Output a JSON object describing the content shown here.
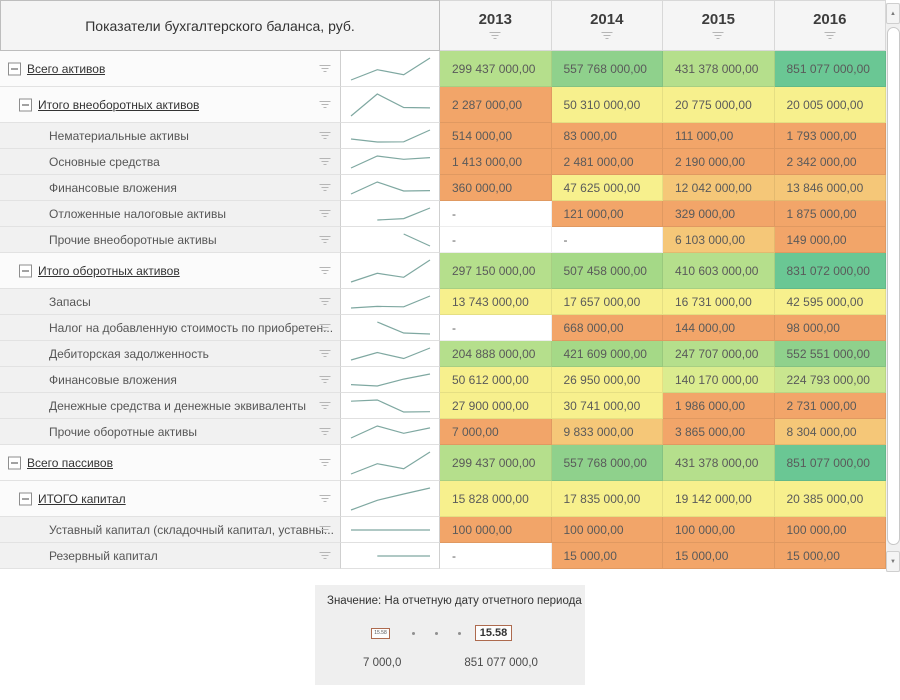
{
  "header": {
    "title": "Показатели бухгалтерского баланса, руб.",
    "years": [
      "2013",
      "2014",
      "2015",
      "2016"
    ]
  },
  "palette": {
    "orange": "#F2A569",
    "amber": "#F5C778",
    "yellow": "#F7F08D",
    "yellowgreen": "#DBEC8F",
    "ygreen2": "#C9E68F",
    "lightgreen": "#B5DF8C",
    "green": "#A5D987",
    "medgreen": "#8FD18C",
    "tealgreen": "#6AC794",
    "white": "#FFFFFF"
  },
  "sparkline_color": "#7FA8A1",
  "rows": [
    {
      "label": "Всего активов",
      "level": 0,
      "group": true,
      "values": [
        "299 437 000,00",
        "557 768 000,00",
        "431 378 000,00",
        "851 077 000,00"
      ],
      "colors": [
        "lightgreen",
        "medgreen",
        "lightgreen",
        "tealgreen"
      ]
    },
    {
      "label": "Итого внеоборотных активов",
      "level": 1,
      "group": true,
      "values": [
        "2 287 000,00",
        "50 310 000,00",
        "20 775 000,00",
        "20 005 000,00"
      ],
      "colors": [
        "orange",
        "yellow",
        "yellow",
        "yellow"
      ]
    },
    {
      "label": "Нематериальные активы",
      "level": 2,
      "group": false,
      "values": [
        "514 000,00",
        "83 000,00",
        "111 000,00",
        "1 793 000,00"
      ],
      "colors": [
        "orange",
        "orange",
        "orange",
        "orange"
      ]
    },
    {
      "label": "Основные средства",
      "level": 2,
      "group": false,
      "values": [
        "1 413 000,00",
        "2 481 000,00",
        "2 190 000,00",
        "2 342 000,00"
      ],
      "colors": [
        "orange",
        "orange",
        "orange",
        "orange"
      ]
    },
    {
      "label": "Финансовые вложения",
      "level": 2,
      "group": false,
      "values": [
        "360 000,00",
        "47 625 000,00",
        "12 042 000,00",
        "13 846 000,00"
      ],
      "colors": [
        "orange",
        "yellow",
        "amber",
        "amber"
      ]
    },
    {
      "label": "Отложенные налоговые активы",
      "level": 2,
      "group": false,
      "values": [
        "-",
        "121 000,00",
        "329 000,00",
        "1 875 000,00"
      ],
      "colors": [
        "white",
        "orange",
        "orange",
        "orange"
      ]
    },
    {
      "label": "Прочие внеоборотные активы",
      "level": 2,
      "group": false,
      "values": [
        "-",
        "-",
        "6 103 000,00",
        "149 000,00"
      ],
      "colors": [
        "white",
        "white",
        "amber",
        "orange"
      ]
    },
    {
      "label": "Итого оборотных активов",
      "level": 1,
      "group": true,
      "values": [
        "297 150 000,00",
        "507 458 000,00",
        "410 603 000,00",
        "831 072 000,00"
      ],
      "colors": [
        "lightgreen",
        "green",
        "lightgreen",
        "tealgreen"
      ]
    },
    {
      "label": "Запасы",
      "level": 2,
      "group": false,
      "values": [
        "13 743 000,00",
        "17 657 000,00",
        "16 731 000,00",
        "42 595 000,00"
      ],
      "colors": [
        "yellow",
        "yellow",
        "yellow",
        "yellow"
      ]
    },
    {
      "label": "Налог на добавленную стоимость по приобретен...",
      "level": 2,
      "group": false,
      "values": [
        "-",
        "668 000,00",
        "144 000,00",
        "98 000,00"
      ],
      "colors": [
        "white",
        "orange",
        "orange",
        "orange"
      ]
    },
    {
      "label": "Дебиторская задолженность",
      "level": 2,
      "group": false,
      "values": [
        "204 888 000,00",
        "421 609 000,00",
        "247 707 000,00",
        "552 551 000,00"
      ],
      "colors": [
        "lightgreen",
        "green",
        "lightgreen",
        "medgreen"
      ]
    },
    {
      "label": "Финансовые вложения",
      "level": 2,
      "group": false,
      "values": [
        "50 612 000,00",
        "26 950 000,00",
        "140 170 000,00",
        "224 793 000,00"
      ],
      "colors": [
        "yellow",
        "yellow",
        "yellowgreen",
        "ygreen2"
      ]
    },
    {
      "label": "Денежные средства и денежные эквиваленты",
      "level": 2,
      "group": false,
      "values": [
        "27 900 000,00",
        "30 741 000,00",
        "1 986 000,00",
        "2 731 000,00"
      ],
      "colors": [
        "yellow",
        "yellow",
        "orange",
        "orange"
      ]
    },
    {
      "label": "Прочие оборотные активы",
      "level": 2,
      "group": false,
      "values": [
        "7 000,00",
        "9 833 000,00",
        "3 865 000,00",
        "8 304 000,00"
      ],
      "colors": [
        "orange",
        "amber",
        "orange",
        "amber"
      ]
    },
    {
      "label": "Всего пассивов",
      "level": 0,
      "group": true,
      "values": [
        "299 437 000,00",
        "557 768 000,00",
        "431 378 000,00",
        "851 077 000,00"
      ],
      "colors": [
        "lightgreen",
        "medgreen",
        "lightgreen",
        "tealgreen"
      ]
    },
    {
      "label": "ИТОГО капитал",
      "level": 1,
      "group": true,
      "values": [
        "15 828 000,00",
        "17 835 000,00",
        "19 142 000,00",
        "20 385 000,00"
      ],
      "colors": [
        "yellow",
        "yellow",
        "yellow",
        "yellow"
      ]
    },
    {
      "label": "Уставный капитал (складочный капитал, уставны...",
      "level": 2,
      "group": false,
      "values": [
        "100 000,00",
        "100 000,00",
        "100 000,00",
        "100 000,00"
      ],
      "colors": [
        "orange",
        "orange",
        "orange",
        "orange"
      ]
    },
    {
      "label": "Резервный капитал",
      "level": 2,
      "group": false,
      "values": [
        "-",
        "15 000,00",
        "15 000,00",
        "15 000,00"
      ],
      "colors": [
        "white",
        "orange",
        "orange",
        "orange"
      ]
    }
  ],
  "legend": {
    "title": "Значение: На отчетную дату отчетного периода",
    "min_handle_label": "15.58",
    "max_handle_label": "15.58",
    "min_value": "7 000,0",
    "max_value": "851 077 000,0"
  },
  "icons": {
    "scroll_up": "▲",
    "scroll_down": "▼"
  }
}
